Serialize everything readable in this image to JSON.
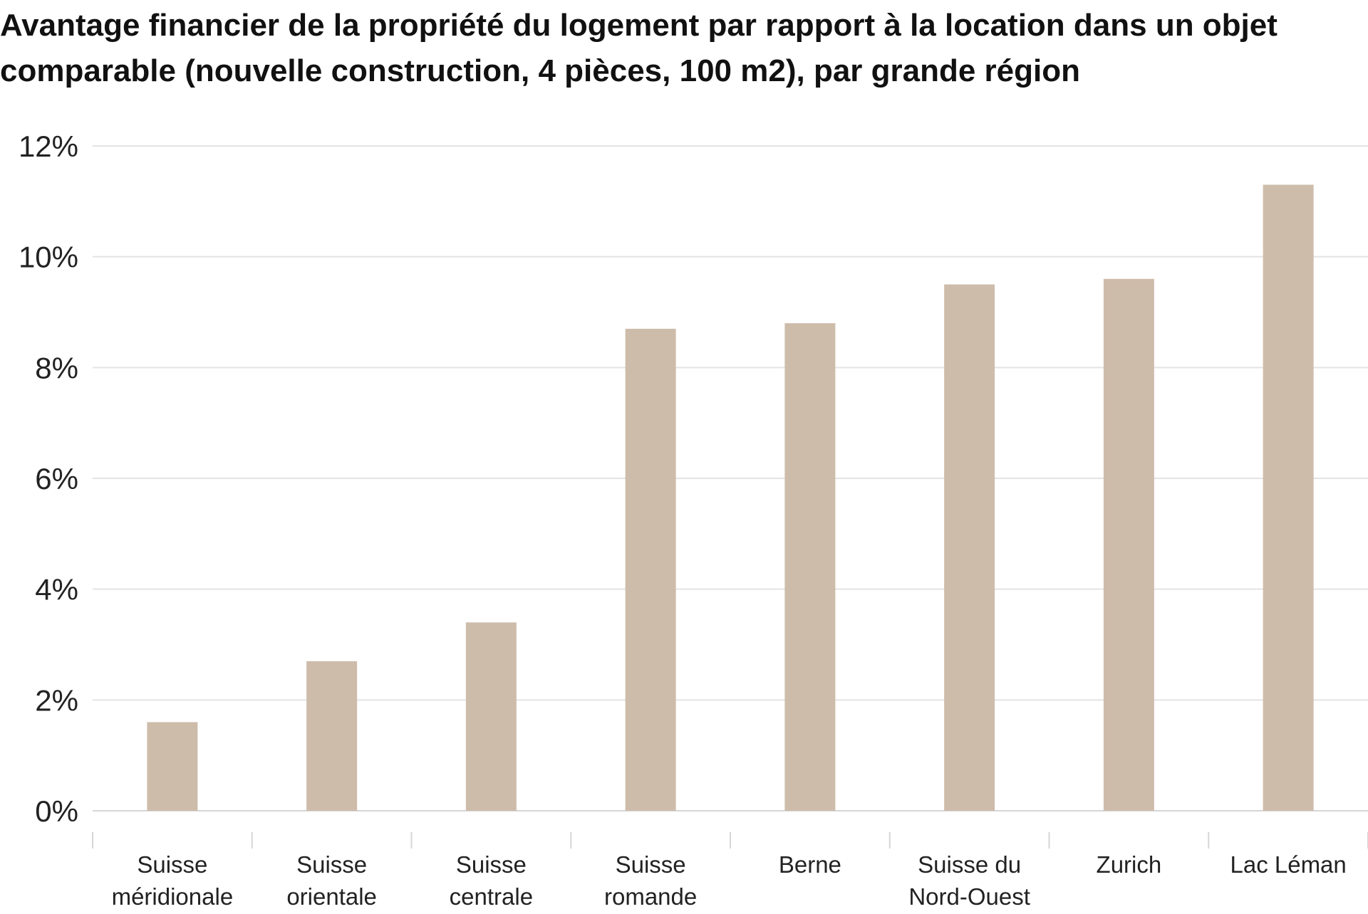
{
  "chart_data": {
    "type": "bar",
    "title": "Avantage financier de la propriété du logement par rapport à la location dans un objet comparable (nouvelle construction, 4 pièces, 100 m2), par grande région",
    "xlabel": "",
    "ylabel": "",
    "categories": [
      [
        "Suisse",
        "méridionale"
      ],
      [
        "Suisse",
        "orientale"
      ],
      [
        "Suisse",
        "centrale"
      ],
      [
        "Suisse",
        "romande"
      ],
      [
        "Berne"
      ],
      [
        "Suisse du",
        "Nord-Ouest"
      ],
      [
        "Zurich"
      ],
      [
        "Lac Léman"
      ]
    ],
    "values": [
      1.6,
      2.7,
      3.4,
      8.7,
      8.8,
      9.5,
      9.6,
      11.3
    ],
    "ylim": [
      0,
      12
    ],
    "y_ticks": [
      0,
      2,
      4,
      6,
      8,
      10,
      12
    ],
    "y_tick_suffix": "%",
    "grid": true,
    "legend": "none",
    "colors": {
      "bar": "#cebcab",
      "grid": "#e3e3e3",
      "text": "#222222"
    }
  }
}
